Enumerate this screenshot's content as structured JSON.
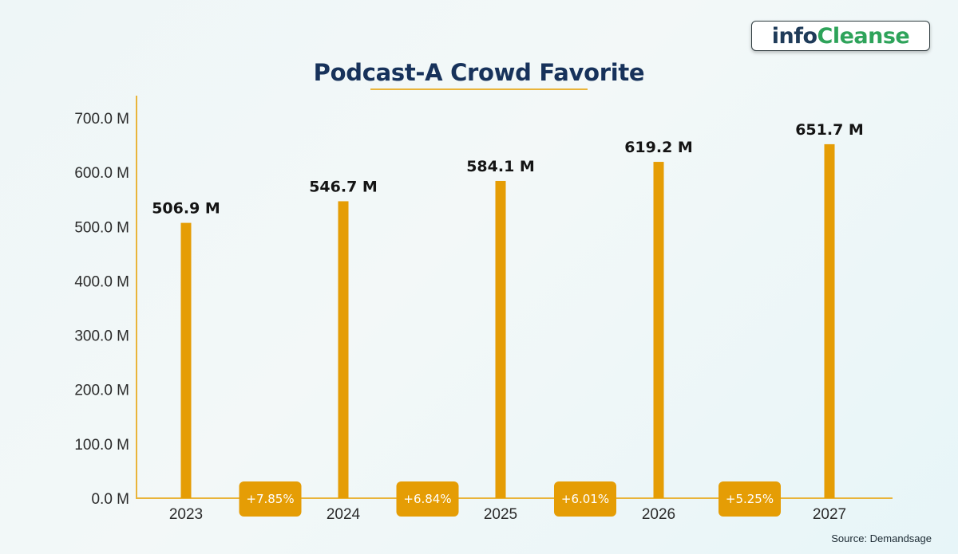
{
  "brand": {
    "logo_part1": "info",
    "logo_part2": "Cleanse"
  },
  "source": "Source: Demandsage",
  "colors": {
    "bar": "#E59D05",
    "axis": "#E9B43A",
    "title": "#17325B",
    "badge": "#E59D05"
  },
  "chart_data": {
    "type": "bar",
    "title": "Podcast-A Crowd Favorite",
    "xlabel": "",
    "ylabel": "",
    "categories": [
      "2023",
      "2024",
      "2025",
      "2026",
      "2027"
    ],
    "values": [
      506.9,
      546.7,
      584.1,
      619.2,
      651.7
    ],
    "value_labels": [
      "506.9 M",
      "546.7 M",
      "584.1 M",
      "619.2 M",
      "651.7 M"
    ],
    "unit": "M",
    "ylim": [
      0,
      700
    ],
    "yticks": [
      0,
      100,
      200,
      300,
      400,
      500,
      600,
      700
    ],
    "ytick_labels": [
      "0.0 M",
      "100.0 M",
      "200.0 M",
      "300.0 M",
      "400.0 M",
      "500.0 M",
      "600.0 M",
      "700.0 M"
    ],
    "growth_labels": [
      "+7.85%",
      "+6.84%",
      "+6.01%",
      "+5.25%"
    ],
    "grid": false,
    "legend": "none"
  }
}
